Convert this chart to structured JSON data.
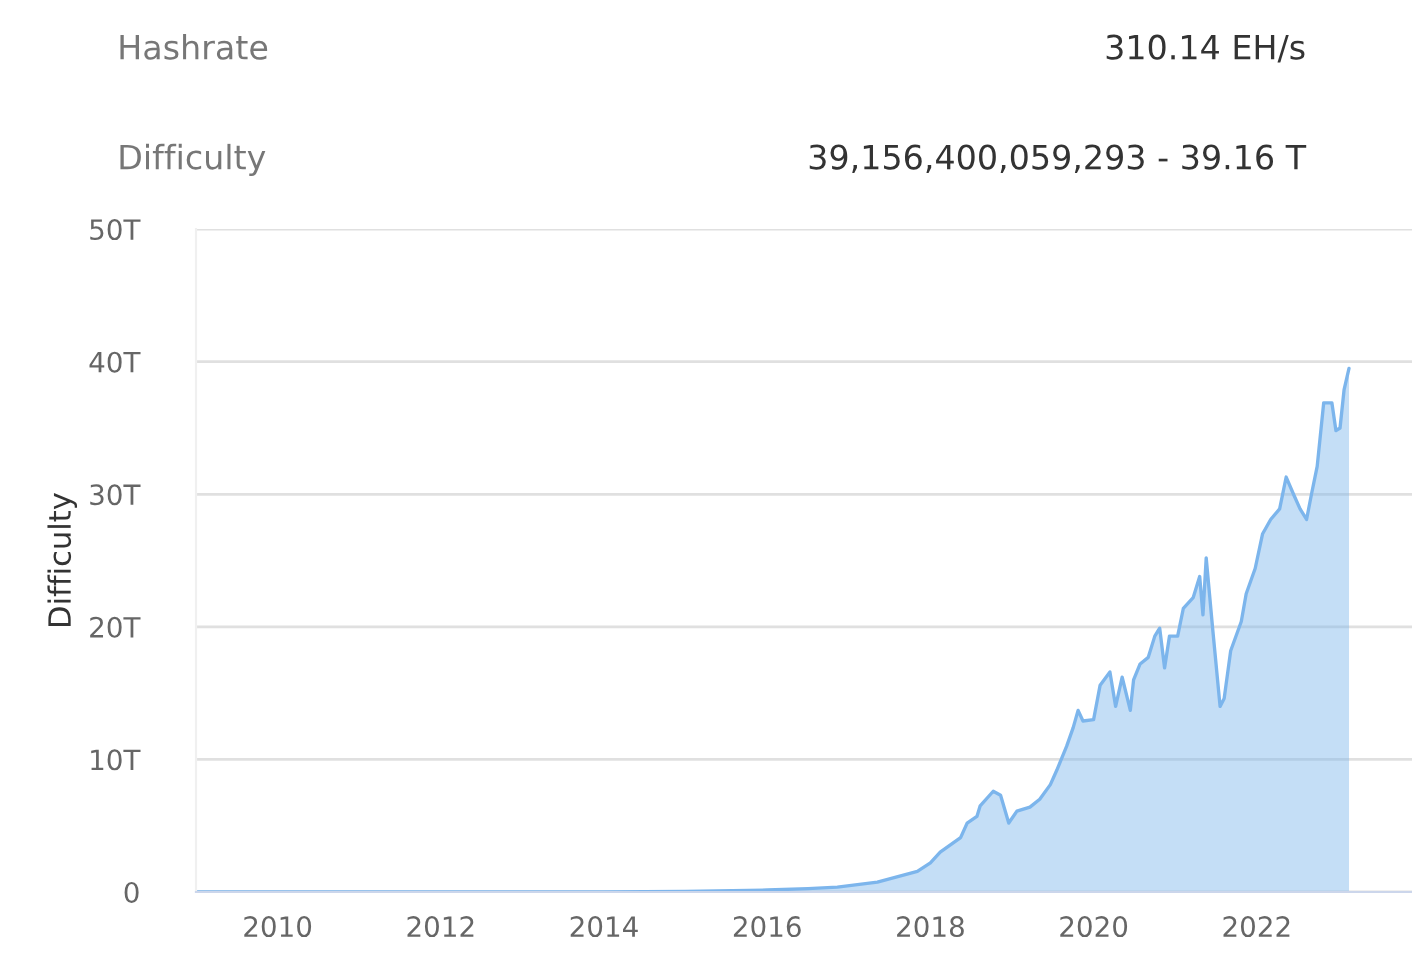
{
  "chart_data": {
    "type": "area",
    "ylabel": "Difficulty",
    "annotations": [
      "Hashrate",
      "310.14 EH/s",
      "Difficulty",
      "39,156,400,059,293 - 39.16 T"
    ],
    "x": [
      2009.0,
      2010.0,
      2011.0,
      2012.0,
      2013.0,
      2014.0,
      2015.0,
      2016.0,
      2016.5,
      2016.86,
      2017.35,
      2017.84,
      2018.0,
      2018.12,
      2018.37,
      2018.45,
      2018.57,
      2018.61,
      2018.77,
      2018.86,
      2018.96,
      2019.06,
      2019.22,
      2019.34,
      2019.47,
      2019.55,
      2019.67,
      2019.75,
      2019.81,
      2019.87,
      2020.0,
      2020.08,
      2020.2,
      2020.27,
      2020.35,
      2020.45,
      2020.49,
      2020.57,
      2020.67,
      2020.75,
      2020.81,
      2020.87,
      2020.93,
      2021.03,
      2021.1,
      2021.22,
      2021.3,
      2021.34,
      2021.38,
      2021.46,
      2021.55,
      2021.6,
      2021.68,
      2021.81,
      2021.87,
      2021.98,
      2022.07,
      2022.17,
      2022.28,
      2022.36,
      2022.45,
      2022.53,
      2022.61,
      2022.67,
      2022.74,
      2022.82,
      2022.92,
      2022.97,
      2023.02,
      2023.07,
      2023.13
    ],
    "series": [
      {
        "color": "#7cb5ec",
        "values": [
          0,
          0,
          0,
          0,
          0,
          0,
          0.05,
          0.15,
          0.25,
          0.37,
          0.75,
          1.55,
          2.2,
          3.0,
          4.1,
          5.2,
          5.7,
          6.5,
          7.6,
          7.3,
          5.2,
          6.1,
          6.4,
          7.0,
          8.1,
          9.2,
          11.0,
          12.4,
          13.7,
          12.9,
          13.0,
          15.6,
          16.6,
          14.0,
          16.2,
          13.7,
          16.0,
          17.2,
          17.7,
          19.3,
          19.9,
          16.9,
          19.3,
          19.3,
          21.4,
          22.2,
          23.8,
          20.9,
          25.2,
          19.8,
          14.0,
          14.6,
          18.2,
          20.4,
          22.5,
          24.4,
          27.0,
          28.1,
          28.9,
          31.3,
          30.0,
          28.9,
          28.1,
          30.0,
          32.1,
          36.9,
          36.9,
          34.8,
          35.0,
          37.9,
          39.5
        ]
      }
    ],
    "xlim": [
      2009,
      2024
    ],
    "xticks": [
      2010,
      2012,
      2014,
      2016,
      2018,
      2020,
      2022
    ],
    "ylim": [
      0,
      50
    ],
    "yticks": [
      {
        "value": 0,
        "label": "0"
      },
      {
        "value": 10,
        "label": "10T"
      },
      {
        "value": 20,
        "label": "20T"
      },
      {
        "value": 30,
        "label": "30T"
      },
      {
        "value": 40,
        "label": "40T"
      },
      {
        "value": 50,
        "label": "50T"
      }
    ],
    "grid": "y"
  }
}
